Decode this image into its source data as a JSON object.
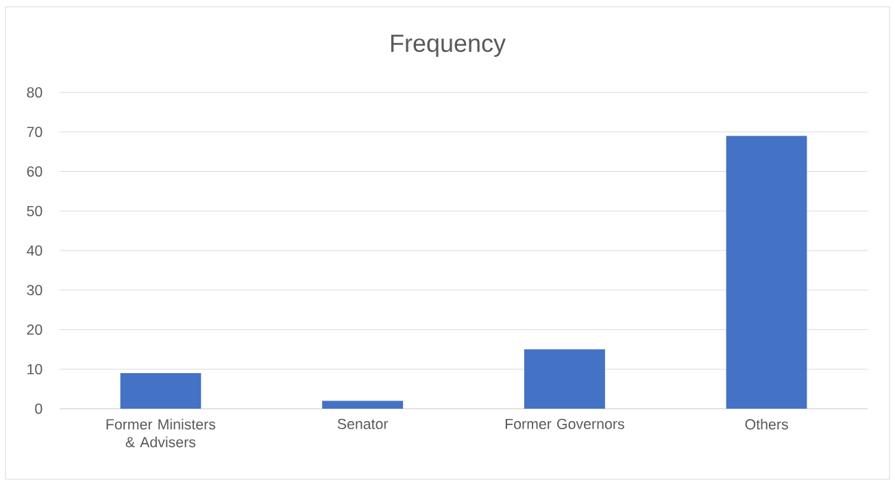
{
  "chart_data": {
    "type": "bar",
    "title": "Frequency",
    "categories": [
      "Former Ministers & Advisers",
      "Senator",
      "Former Governors",
      "Others"
    ],
    "values": [
      9,
      2,
      15,
      69
    ],
    "color": "#4472c4",
    "ylim": [
      0,
      80
    ],
    "yticks": [
      0,
      10,
      20,
      30,
      40,
      50,
      60,
      70,
      80
    ],
    "grid": "y"
  }
}
